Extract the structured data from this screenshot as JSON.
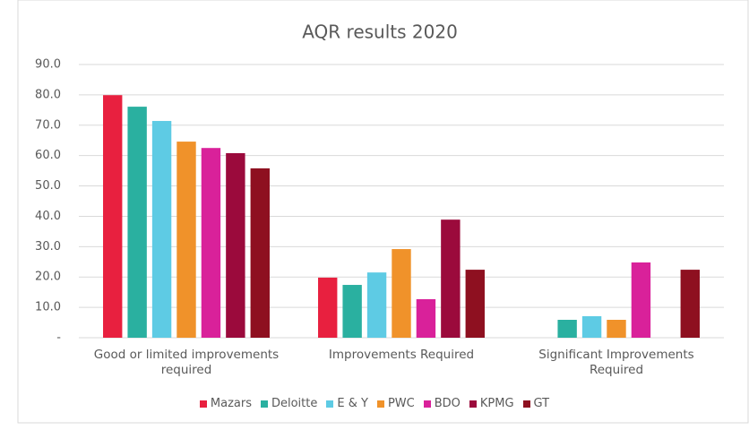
{
  "chart_data": {
    "type": "bar",
    "title": "AQR results 2020",
    "categories": [
      "Good or limited improvements required",
      "Improvements Required",
      "Significant Improvements Required"
    ],
    "series": [
      {
        "name": "Mazars",
        "color": "#e8203f",
        "values": [
          79.9,
          19.8,
          0
        ]
      },
      {
        "name": "Deloitte",
        "color": "#2ab0a0",
        "values": [
          76.1,
          17.4,
          5.9
        ]
      },
      {
        "name": "E & Y",
        "color": "#5ecbe4",
        "values": [
          71.4,
          21.5,
          7.1
        ]
      },
      {
        "name": "PWC",
        "color": "#f0922a",
        "values": [
          64.6,
          29.2,
          5.9
        ]
      },
      {
        "name": "BDO",
        "color": "#d9219a",
        "values": [
          62.5,
          12.7,
          24.8
        ]
      },
      {
        "name": "KPMG",
        "color": "#9b0a3c",
        "values": [
          60.8,
          38.9,
          0
        ]
      },
      {
        "name": "GT",
        "color": "#8e1020",
        "values": [
          55.8,
          22.4,
          22.4
        ]
      }
    ],
    "ylim": [
      0,
      90
    ],
    "yticks": [
      {
        "value": 0,
        "label": "-"
      },
      {
        "value": 10,
        "label": "10.0"
      },
      {
        "value": 20,
        "label": "20.0"
      },
      {
        "value": 30,
        "label": "30.0"
      },
      {
        "value": 40,
        "label": "40.0"
      },
      {
        "value": 50,
        "label": "50.0"
      },
      {
        "value": 60,
        "label": "60.0"
      },
      {
        "value": 70,
        "label": "70.0"
      },
      {
        "value": 80,
        "label": "80.0"
      },
      {
        "value": 90,
        "label": "90.0"
      }
    ],
    "grid": true,
    "legend": "bottom"
  }
}
